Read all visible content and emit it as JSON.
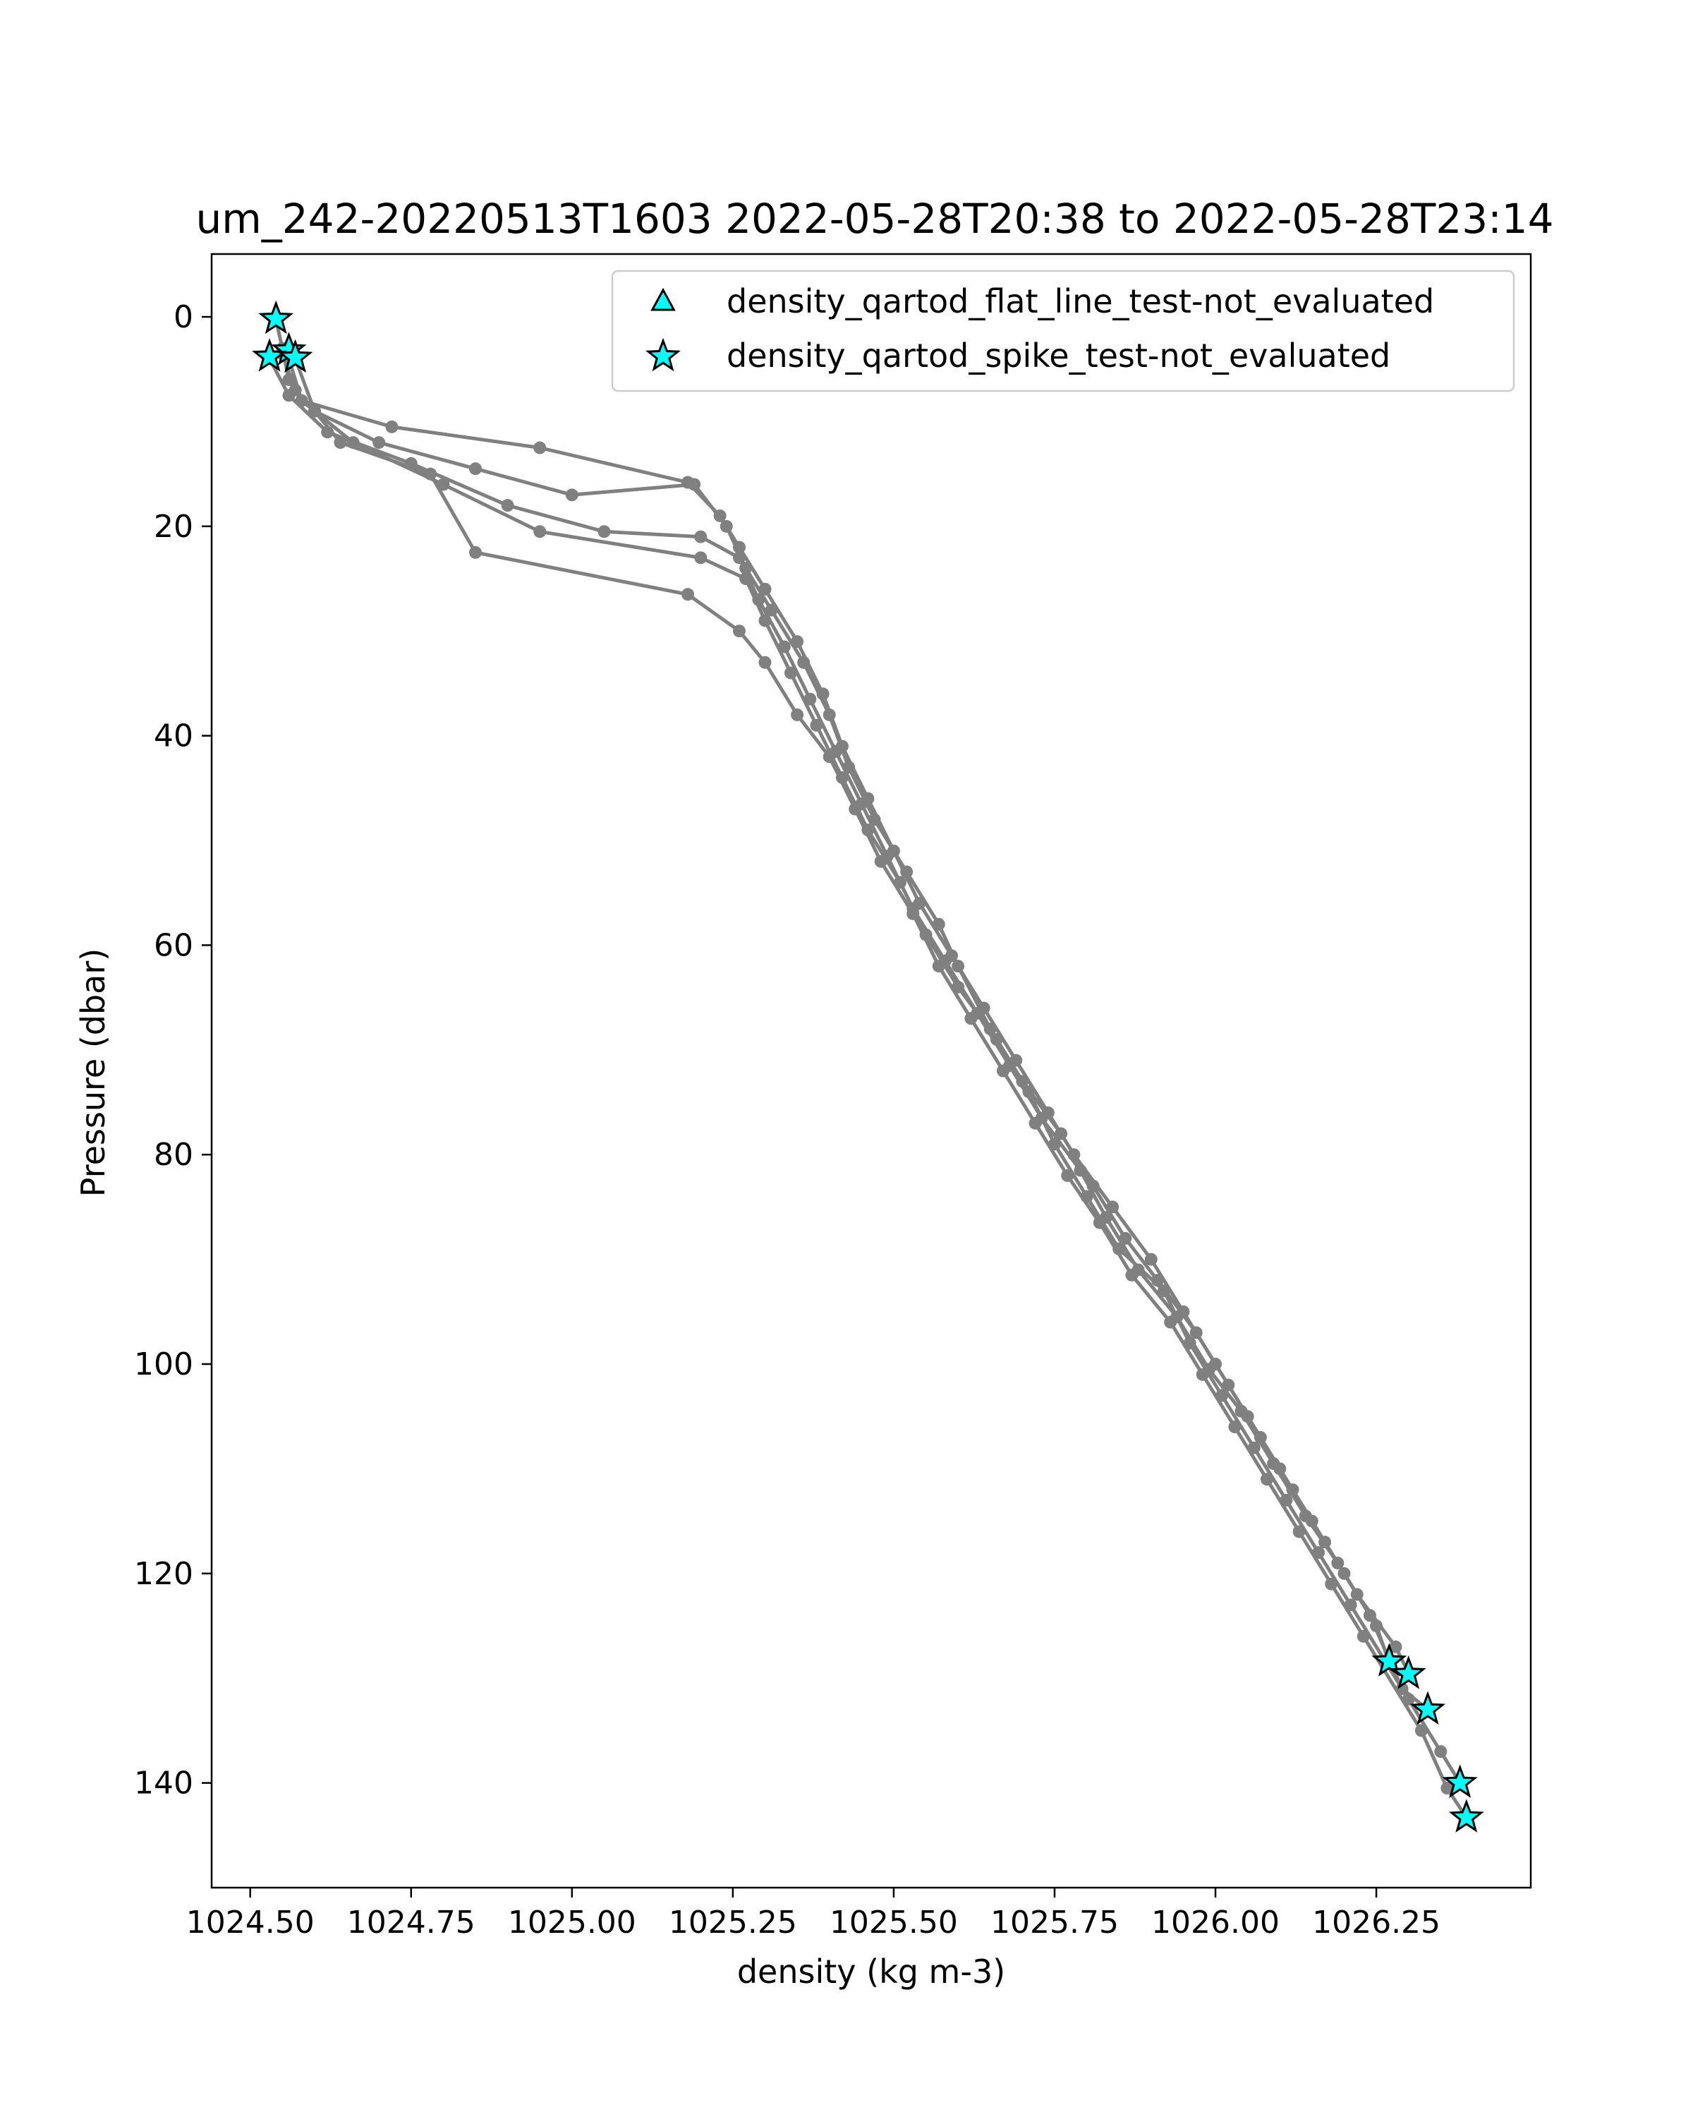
{
  "chart_data": {
    "type": "scatter",
    "title": "um_242-20220513T1603 2022-05-28T20:38 to 2022-05-28T23:14",
    "xlabel": "density (kg m-3)",
    "ylabel": "Pressure (dbar)",
    "xlim": [
      1024.44,
      1026.49
    ],
    "ylim": [
      150,
      -6
    ],
    "y_inverted": true,
    "xticks": [
      1024.5,
      1024.75,
      1025.0,
      1025.25,
      1025.5,
      1025.75,
      1026.0,
      1026.25
    ],
    "xtick_labels": [
      "1024.50",
      "1024.75",
      "1025.00",
      "1025.25",
      "1025.50",
      "1025.75",
      "1026.00",
      "1026.25"
    ],
    "yticks": [
      0,
      20,
      40,
      60,
      80,
      100,
      120,
      140
    ],
    "ytick_labels": [
      "0",
      "20",
      "40",
      "60",
      "80",
      "100",
      "120",
      "140"
    ],
    "grid": false,
    "legend_position": "top-right",
    "colors": {
      "profile": "#808080",
      "flag_fill": "#00ffff",
      "flag_edge": "#000000"
    },
    "series": [
      {
        "name": "",
        "kind": "profiles-line-marker",
        "profiles": [
          [
            [
              1024.54,
              0.3
            ],
            [
              1024.55,
              3
            ],
            [
              1024.56,
              6
            ],
            [
              1024.58,
              8
            ],
            [
              1024.72,
              10.5
            ],
            [
              1024.95,
              12.5
            ],
            [
              1025.18,
              15.8
            ],
            [
              1025.23,
              19
            ],
            [
              1025.26,
              22
            ],
            [
              1025.3,
              26
            ],
            [
              1025.35,
              31
            ],
            [
              1025.39,
              36
            ],
            [
              1025.42,
              41
            ],
            [
              1025.46,
              46
            ],
            [
              1025.5,
              51
            ],
            [
              1025.54,
              56
            ],
            [
              1025.59,
              61
            ],
            [
              1025.64,
              66
            ],
            [
              1025.69,
              71
            ],
            [
              1025.74,
              76
            ],
            [
              1025.78,
              80
            ],
            [
              1025.84,
              85
            ],
            [
              1025.9,
              90
            ],
            [
              1025.95,
              95
            ],
            [
              1026.0,
              100
            ],
            [
              1026.05,
              105
            ],
            [
              1026.1,
              110
            ],
            [
              1026.15,
              115
            ],
            [
              1026.2,
              120
            ],
            [
              1026.25,
              125
            ],
            [
              1026.27,
              128.5
            ]
          ],
          [
            [
              1024.55,
              3.5
            ],
            [
              1024.57,
              7
            ],
            [
              1024.6,
              9
            ],
            [
              1024.7,
              12
            ],
            [
              1024.85,
              14.5
            ],
            [
              1025.0,
              17
            ],
            [
              1025.19,
              16
            ],
            [
              1025.24,
              20
            ],
            [
              1025.27,
              24
            ],
            [
              1025.31,
              28
            ],
            [
              1025.36,
              33
            ],
            [
              1025.4,
              38
            ],
            [
              1025.43,
              43
            ],
            [
              1025.47,
              48
            ],
            [
              1025.52,
              53
            ],
            [
              1025.57,
              58
            ],
            [
              1025.6,
              62
            ],
            [
              1025.65,
              68
            ],
            [
              1025.7,
              73
            ],
            [
              1025.76,
              78
            ],
            [
              1025.81,
              83
            ],
            [
              1025.86,
              88
            ],
            [
              1025.91,
              92
            ],
            [
              1025.97,
              97
            ],
            [
              1026.02,
              102
            ],
            [
              1026.07,
              107
            ],
            [
              1026.12,
              112
            ],
            [
              1026.17,
              117
            ],
            [
              1026.22,
              122
            ],
            [
              1026.28,
              127
            ],
            [
              1026.3,
              129.5
            ]
          ],
          [
            [
              1024.53,
              4
            ],
            [
              1024.56,
              7.5
            ],
            [
              1024.62,
              11
            ],
            [
              1024.75,
              14
            ],
            [
              1024.9,
              18
            ],
            [
              1025.05,
              20.5
            ],
            [
              1025.2,
              21
            ],
            [
              1025.26,
              23
            ],
            [
              1025.29,
              27
            ],
            [
              1025.33,
              31.5
            ],
            [
              1025.37,
              36.5
            ],
            [
              1025.41,
              41.5
            ],
            [
              1025.45,
              46.5
            ],
            [
              1025.49,
              51.5
            ],
            [
              1025.53,
              56.5
            ],
            [
              1025.58,
              61.5
            ],
            [
              1025.63,
              66.5
            ],
            [
              1025.68,
              71.5
            ],
            [
              1025.73,
              76.5
            ],
            [
              1025.79,
              81.5
            ],
            [
              1025.83,
              86
            ],
            [
              1025.88,
              91
            ],
            [
              1025.94,
              95.5
            ],
            [
              1025.99,
              100.5
            ],
            [
              1026.04,
              104.5
            ],
            [
              1026.09,
              109.5
            ],
            [
              1026.14,
              114.5
            ],
            [
              1026.19,
              119
            ],
            [
              1026.24,
              124
            ],
            [
              1026.29,
              131
            ],
            [
              1026.33,
              133
            ]
          ],
          [
            [
              1024.56,
              4
            ],
            [
              1024.58,
              8
            ],
            [
              1024.66,
              12
            ],
            [
              1024.8,
              16
            ],
            [
              1024.95,
              20.5
            ],
            [
              1025.2,
              23
            ],
            [
              1025.27,
              25
            ],
            [
              1025.3,
              29
            ],
            [
              1025.34,
              34
            ],
            [
              1025.38,
              39
            ],
            [
              1025.42,
              44
            ],
            [
              1025.46,
              49
            ],
            [
              1025.51,
              54
            ],
            [
              1025.55,
              59
            ],
            [
              1025.6,
              64
            ],
            [
              1025.66,
              69
            ],
            [
              1025.71,
              74
            ],
            [
              1025.75,
              79
            ],
            [
              1025.8,
              84
            ],
            [
              1025.85,
              89
            ],
            [
              1025.92,
              93
            ],
            [
              1025.96,
              98
            ],
            [
              1026.01,
              103
            ],
            [
              1026.06,
              108
            ],
            [
              1026.11,
              113
            ],
            [
              1026.16,
              118
            ],
            [
              1026.21,
              123
            ],
            [
              1026.3,
              132
            ],
            [
              1026.35,
              137
            ],
            [
              1026.38,
              140
            ]
          ],
          [
            [
              1024.57,
              4
            ],
            [
              1024.6,
              9
            ],
            [
              1024.64,
              12
            ],
            [
              1024.78,
              15
            ],
            [
              1024.85,
              22.5
            ],
            [
              1025.18,
              26.5
            ],
            [
              1025.26,
              30
            ],
            [
              1025.3,
              33
            ],
            [
              1025.35,
              38
            ],
            [
              1025.4,
              42
            ],
            [
              1025.44,
              47
            ],
            [
              1025.48,
              52
            ],
            [
              1025.53,
              57
            ],
            [
              1025.57,
              62
            ],
            [
              1025.62,
              67
            ],
            [
              1025.67,
              72
            ],
            [
              1025.72,
              77
            ],
            [
              1025.77,
              82
            ],
            [
              1025.82,
              86.5
            ],
            [
              1025.87,
              91.5
            ],
            [
              1025.93,
              96
            ],
            [
              1025.98,
              101
            ],
            [
              1026.03,
              106
            ],
            [
              1026.08,
              111
            ],
            [
              1026.13,
              116
            ],
            [
              1026.18,
              121
            ],
            [
              1026.23,
              126
            ],
            [
              1026.32,
              135
            ],
            [
              1026.36,
              140.5
            ],
            [
              1026.39,
              143.3
            ]
          ]
        ]
      },
      {
        "name": "density_qartod_flat_line_test-not_evaluated",
        "marker": "triangle",
        "points": []
      },
      {
        "name": "density_qartod_spike_test-not_evaluated",
        "marker": "star",
        "points": [
          [
            1024.54,
            0.2
          ],
          [
            1024.56,
            3.2
          ],
          [
            1024.53,
            3.8
          ],
          [
            1024.57,
            3.9
          ],
          [
            1026.27,
            128.4
          ],
          [
            1026.3,
            129.6
          ],
          [
            1026.33,
            133.0
          ],
          [
            1026.38,
            140.0
          ],
          [
            1026.39,
            143.3
          ]
        ]
      }
    ]
  }
}
